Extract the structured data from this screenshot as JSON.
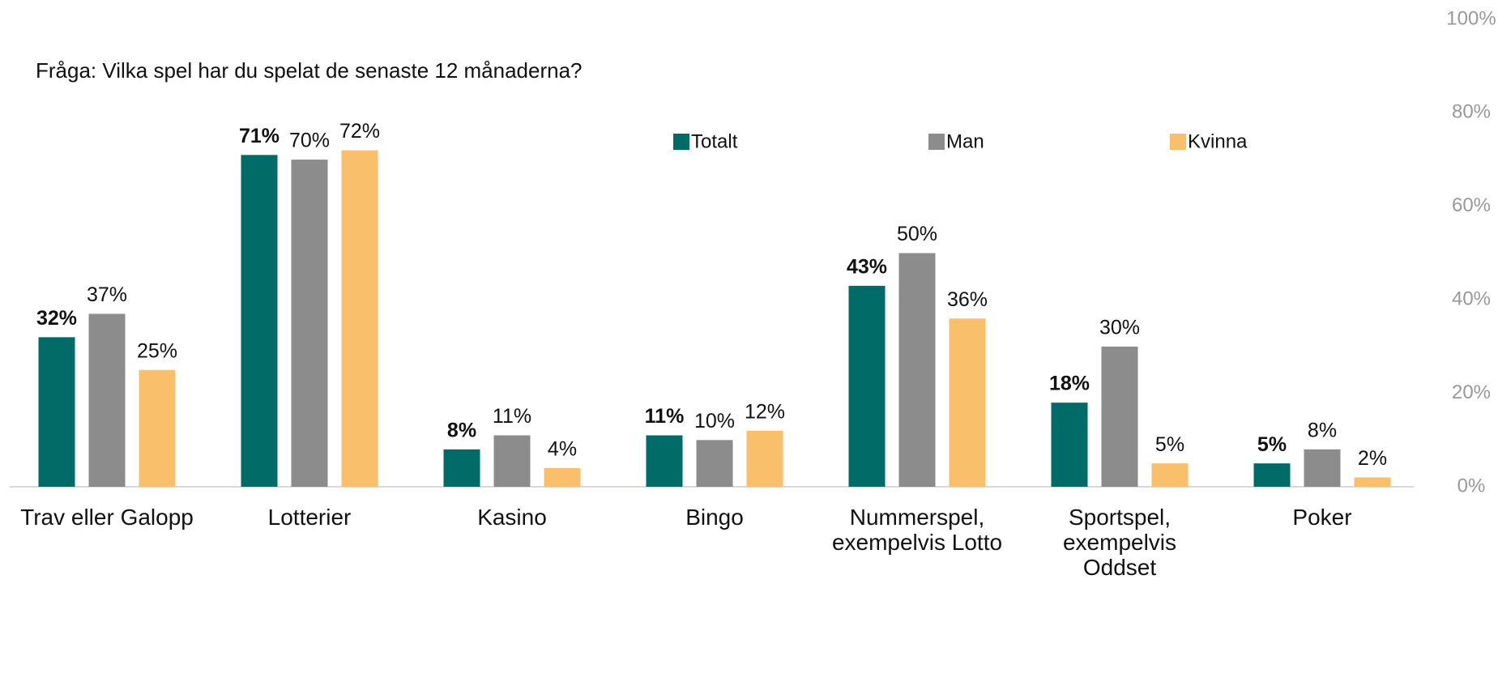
{
  "chart_data": {
    "type": "bar",
    "title": "Fråga: Vilka spel har du spelat de senaste 12 månaderna?",
    "categories": [
      "Trav eller Galopp",
      "Lotterier",
      "Kasino",
      "Bingo",
      "Nummerspel,\nexempelvis Lotto",
      "Sportspel,\nexempelvis\nOddset",
      "Poker"
    ],
    "series": [
      {
        "name": "Totalt",
        "color": "#006b67",
        "bold": true,
        "values": [
          32,
          71,
          8,
          11,
          43,
          18,
          5
        ],
        "value_labels": [
          "32%",
          "71%",
          "8%",
          "11%",
          "43%",
          "18%",
          "5%"
        ]
      },
      {
        "name": "Man",
        "color": "#8c8c8c",
        "values": [
          37,
          70,
          11,
          10,
          50,
          30,
          8
        ],
        "value_labels": [
          "37%",
          "70%",
          "11%",
          "10%",
          "50%",
          "30%",
          "8%"
        ]
      },
      {
        "name": "Kvinna",
        "color": "#f9bf6b",
        "values": [
          25,
          72,
          4,
          12,
          36,
          5,
          2
        ],
        "value_labels": [
          "25%",
          "72%",
          "4%",
          "12%",
          "36%",
          "5%",
          "2%"
        ]
      }
    ],
    "ylim": [
      0,
      100
    ],
    "yticks": [
      {
        "value": 0,
        "label": "0%"
      },
      {
        "value": 20,
        "label": "20%"
      },
      {
        "value": 40,
        "label": "40%"
      },
      {
        "value": 60,
        "label": "60%"
      },
      {
        "value": 80,
        "label": "80%"
      },
      {
        "value": 100,
        "label": "100%"
      }
    ],
    "grid": false
  }
}
